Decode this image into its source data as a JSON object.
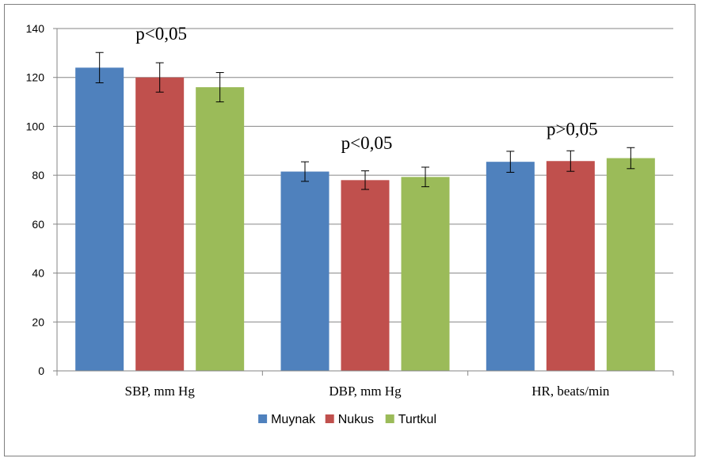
{
  "chart_data": {
    "type": "bar",
    "categories": [
      "SBP, mm Hg",
      "DBP, mm Hg",
      "HR, beats/min"
    ],
    "series": [
      {
        "name": "Muynak",
        "color": "#4f81bd",
        "values": [
          124,
          81.5,
          85.5
        ],
        "errors": [
          6.2,
          4.0,
          4.3
        ]
      },
      {
        "name": "Nukus",
        "color": "#c0504d",
        "values": [
          120,
          78,
          85.8
        ],
        "errors": [
          6.0,
          3.8,
          4.2
        ]
      },
      {
        "name": "Turtkul",
        "color": "#9bbb59",
        "values": [
          116,
          79.3,
          87
        ],
        "errors": [
          6.0,
          4.0,
          4.3
        ]
      }
    ],
    "annotations": [
      "p<0,05",
      "p<0,05",
      "p>0,05"
    ],
    "ylim": [
      0,
      140
    ],
    "yticks": [
      0,
      20,
      40,
      60,
      80,
      100,
      120,
      140
    ],
    "grid": true,
    "legend": "bottom",
    "title": "",
    "xlabel": "",
    "ylabel": ""
  }
}
